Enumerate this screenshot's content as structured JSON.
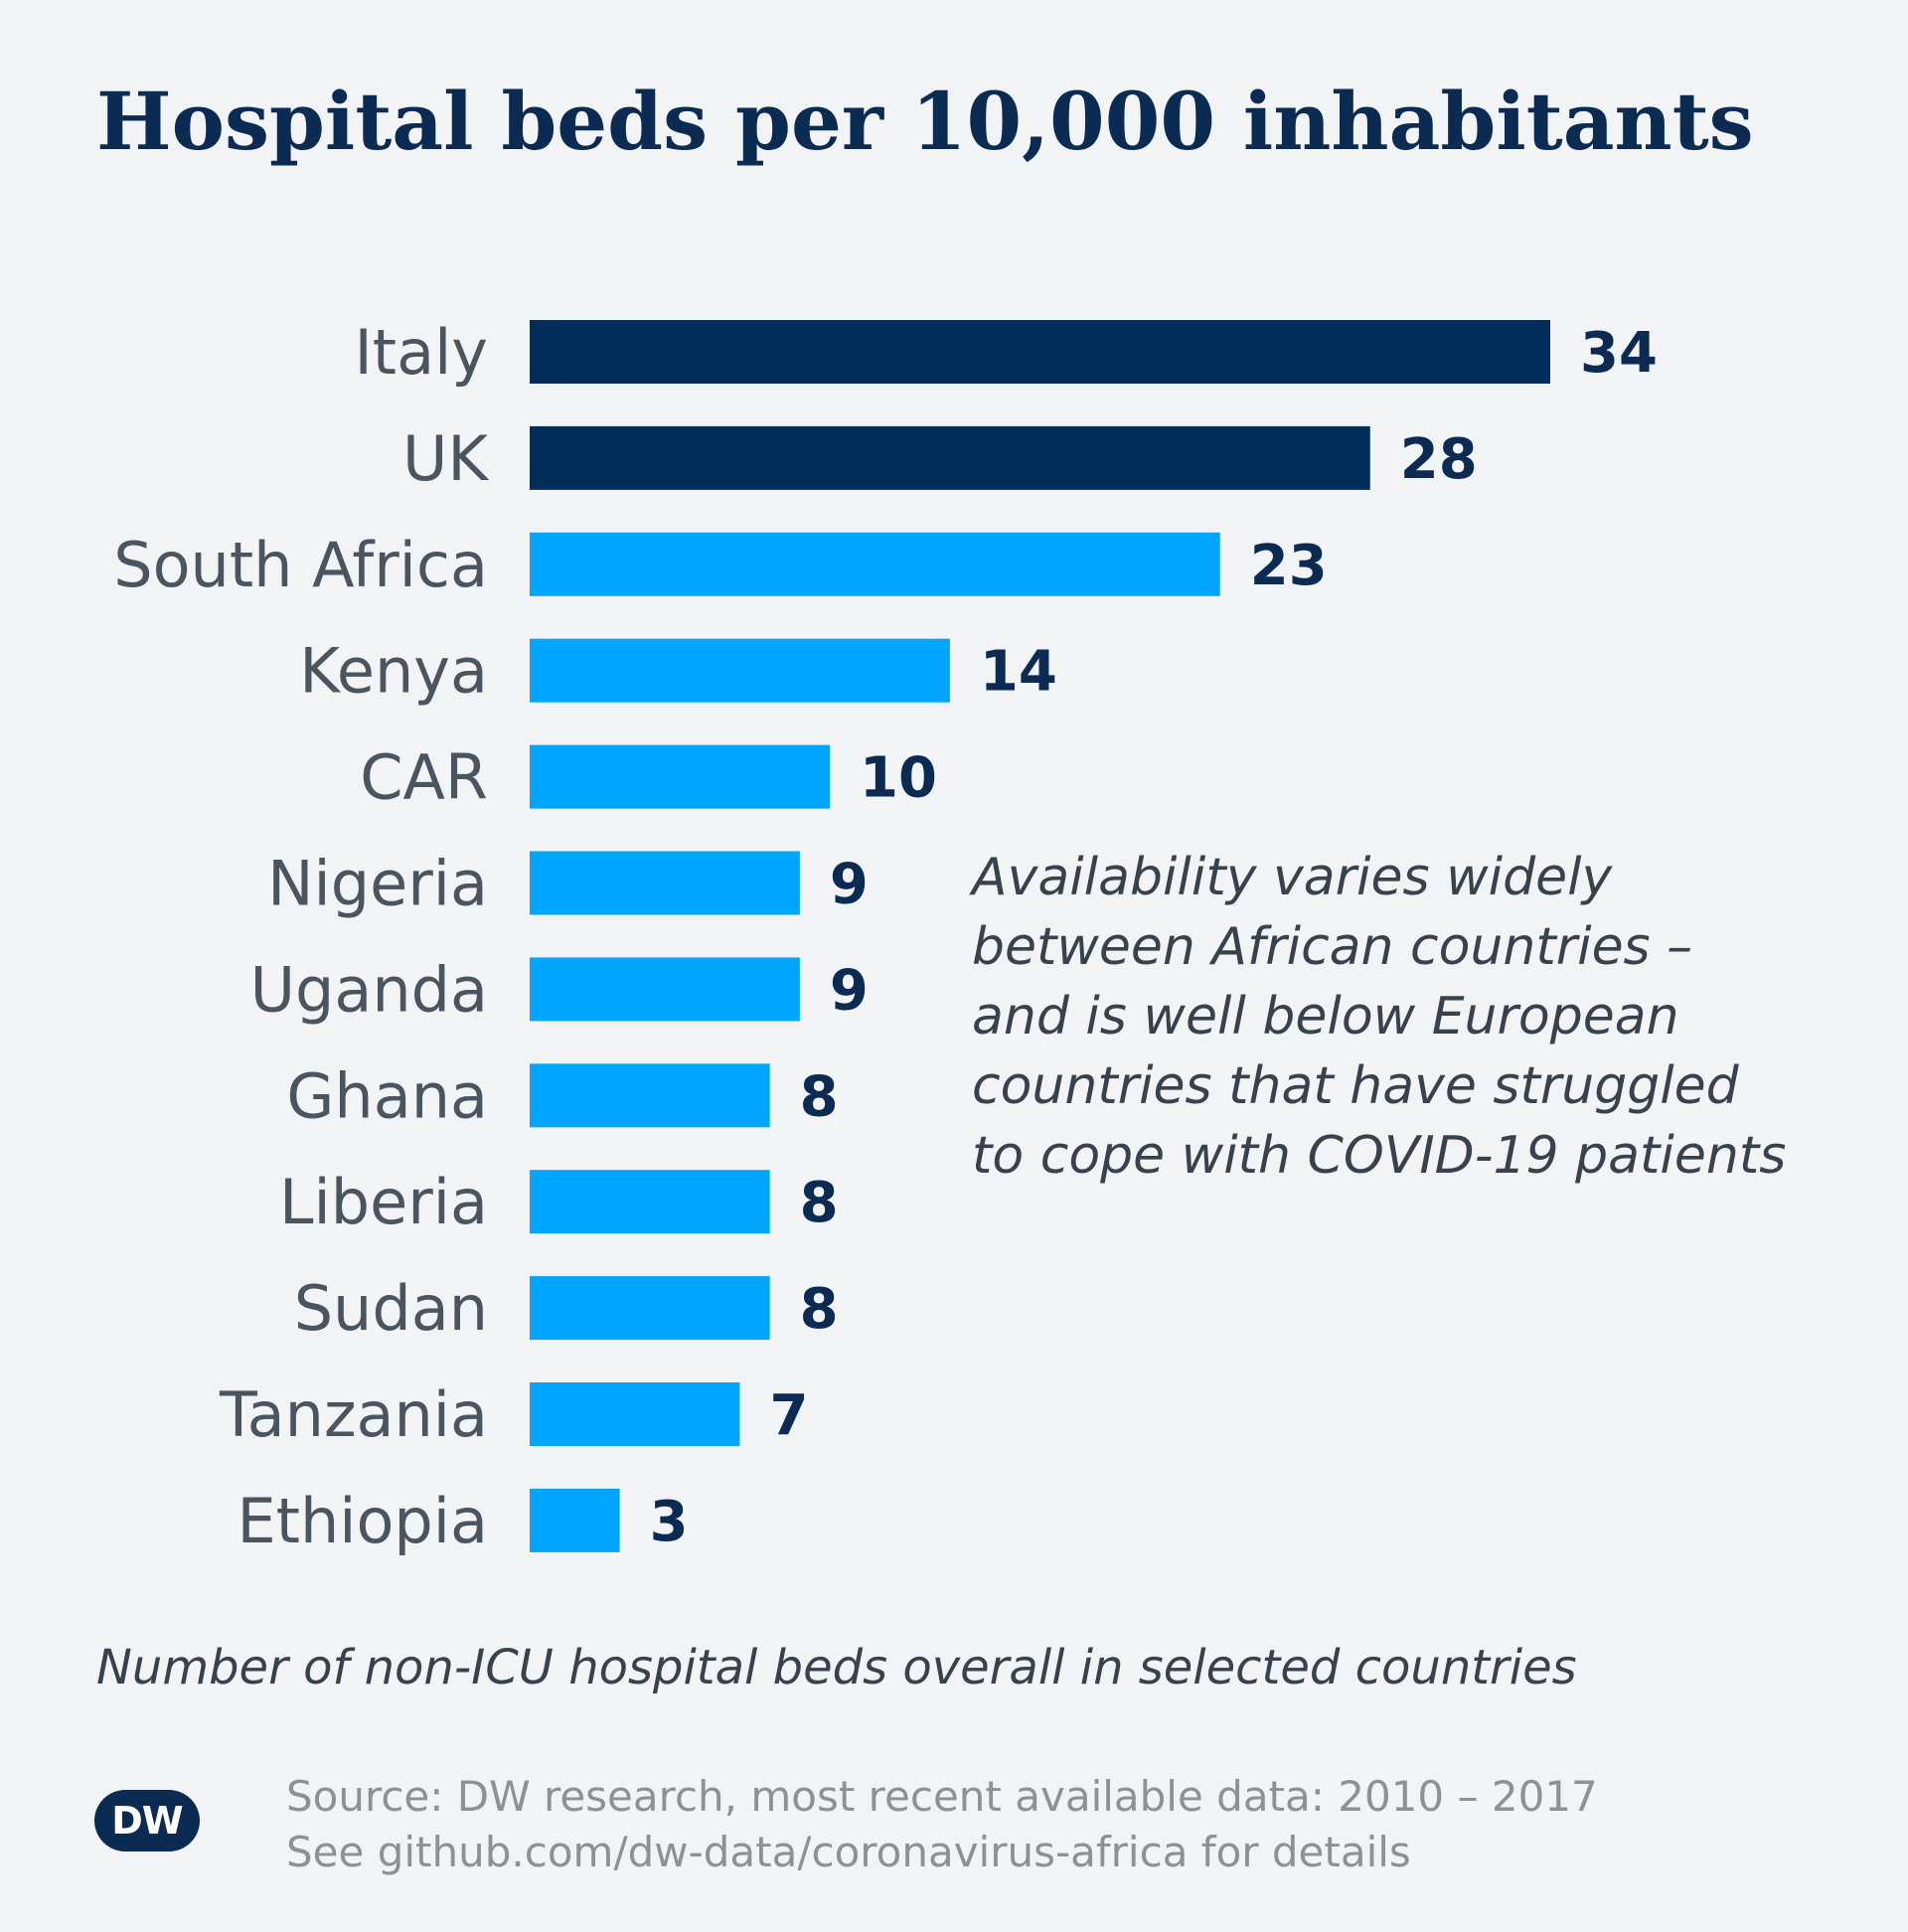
{
  "title": "Hospital beds per 10,000 inhabitants",
  "subtitle": "Number of non-ICU hospital beds overall in selected countries",
  "annotation": [
    "Availability varies widely",
    "between African countries –",
    "and is well below European",
    "countries that have struggled",
    "to cope with COVID-19 patients"
  ],
  "source": [
    "Source: DW research, most recent available data: 2010 – 2017",
    "See github.com/dw-data/coronavirus-africa for details"
  ],
  "logo_text": "DW",
  "colors": {
    "europe": "#002d5a",
    "africa": "#00a5ff",
    "title": "#0c2b52",
    "background": "#f1f3f5"
  },
  "chart_data": {
    "type": "bar",
    "orientation": "horizontal",
    "title": "Hospital beds per 10,000 inhabitants",
    "categories": [
      "Italy",
      "UK",
      "South Africa",
      "Kenya",
      "CAR",
      "Nigeria",
      "Uganda",
      "Ghana",
      "Liberia",
      "Sudan",
      "Tanzania",
      "Ethiopia"
    ],
    "values": [
      34,
      28,
      23,
      14,
      10,
      9,
      9,
      8,
      8,
      8,
      7,
      3
    ],
    "bar_colors": [
      "#002d5a",
      "#002d5a",
      "#00a5ff",
      "#00a5ff",
      "#00a5ff",
      "#00a5ff",
      "#00a5ff",
      "#00a5ff",
      "#00a5ff",
      "#00a5ff",
      "#00a5ff",
      "#00a5ff"
    ],
    "xlim": [
      0,
      34
    ],
    "grid": false,
    "data_labels": true
  }
}
